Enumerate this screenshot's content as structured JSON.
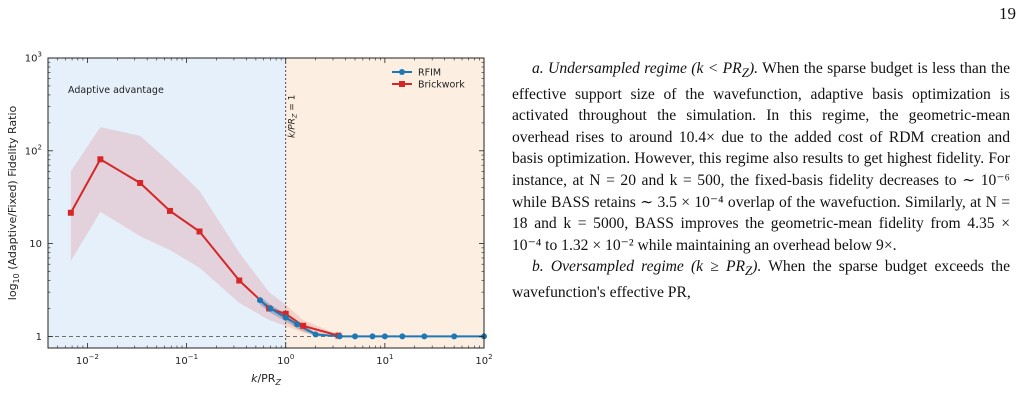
{
  "page": {
    "number": "19"
  },
  "chart_data": {
    "type": "line",
    "xlabel": "k/PR_Z",
    "ylabel": "log10 (Adaptive/Fixed) Fidelity Ratio",
    "x_scale": "log",
    "y_scale": "log",
    "xlim": [
      0.004,
      100
    ],
    "ylim": [
      0.75,
      1000
    ],
    "x_ticks": [
      {
        "value": 0.01,
        "base": "10",
        "exp": "−2"
      },
      {
        "value": 0.1,
        "base": "10",
        "exp": "−1"
      },
      {
        "value": 1,
        "base": "10",
        "exp": "0"
      },
      {
        "value": 10,
        "base": "10",
        "exp": "1"
      },
      {
        "value": 100,
        "base": "10",
        "exp": "2"
      }
    ],
    "y_ticks": [
      {
        "value": 1,
        "label": "1"
      },
      {
        "value": 10,
        "label": "10"
      },
      {
        "value": 100,
        "label": "10",
        "exp": "2"
      },
      {
        "value": 1000,
        "label": "10",
        "exp": "3"
      }
    ],
    "regions": [
      {
        "name": "Adaptive advantage",
        "x": [
          0.004,
          1
        ],
        "color": "#e6f0fb"
      },
      {
        "name": "",
        "x": [
          1,
          100
        ],
        "color": "#fcefe2"
      }
    ],
    "reference_lines": [
      {
        "orientation": "vertical",
        "value": 1,
        "label": "k/PR_Z = 1"
      },
      {
        "orientation": "horizontal",
        "value": 1,
        "label": ""
      }
    ],
    "annotations": [
      {
        "text": "Adaptive advantage"
      }
    ],
    "legend": "top-right",
    "series": [
      {
        "name": "RFIM",
        "color": "#1f77b4",
        "marker": "circle",
        "x": [
          0.55,
          0.7,
          1.0,
          1.3,
          2.0,
          3.5,
          5.0,
          7.5,
          10,
          15,
          25,
          50,
          100
        ],
        "y": [
          2.45,
          2.0,
          1.6,
          1.35,
          1.05,
          1.0,
          1.0,
          1.0,
          1.0,
          1.0,
          1.0,
          1.0,
          1.0
        ],
        "band_low": [
          2.2,
          1.8,
          1.45,
          1.22,
          1.0,
          1.0,
          1.0,
          1.0,
          1.0,
          1.0,
          1.0,
          1.0,
          1.0
        ],
        "band_high": [
          2.7,
          2.2,
          1.75,
          1.45,
          1.1,
          1.0,
          1.0,
          1.0,
          1.0,
          1.0,
          1.0,
          1.0,
          1.0
        ]
      },
      {
        "name": "Brickwork",
        "color": "#d62728",
        "marker": "square",
        "x": [
          0.0068,
          0.0135,
          0.034,
          0.068,
          0.135,
          0.34,
          0.68,
          1.0,
          1.5,
          3.4
        ],
        "y": [
          21.5,
          81,
          45,
          22.5,
          13.5,
          4.0,
          2.0,
          1.75,
          1.3,
          1.02
        ],
        "band_low": [
          6.5,
          22,
          12,
          8.5,
          5.5,
          2.3,
          1.5,
          1.3,
          1.1,
          1.0
        ],
        "band_high": [
          60,
          180,
          145,
          75,
          37,
          8,
          3,
          2.2,
          1.5,
          1.05
        ]
      }
    ]
  },
  "text": {
    "para_a": {
      "label": "a. Undersampled regime (k < PR",
      "label_sub": "Z",
      "label_end": ").",
      "body": " When the sparse budget is less than the effective support size of the wavefunction, adaptive basis optimization is activated throughout the simulation. In this regime, the geometric-mean overhead rises to around 10.4× due to the added cost of RDM creation and basis optimization. However, this regime also results to get highest fidelity. For instance, at N = 20 and k = 500, the fixed-basis fidelity decreases to ∼ 10⁻⁶ while BASS retains ∼ 3.5 × 10⁻⁴ overlap of the wavefuction. Similarly, at N = 18 and k = 5000, BASS improves the geometric-mean fidelity from 4.35 × 10⁻⁴ to 1.32 × 10⁻² while maintaining an overhead below 9×."
    },
    "para_b": {
      "label": "b. Oversampled regime (k ≥ PR",
      "label_sub": "Z",
      "label_end": ").",
      "body": " When the sparse budget exceeds the wavefunction's effective PR,"
    }
  }
}
